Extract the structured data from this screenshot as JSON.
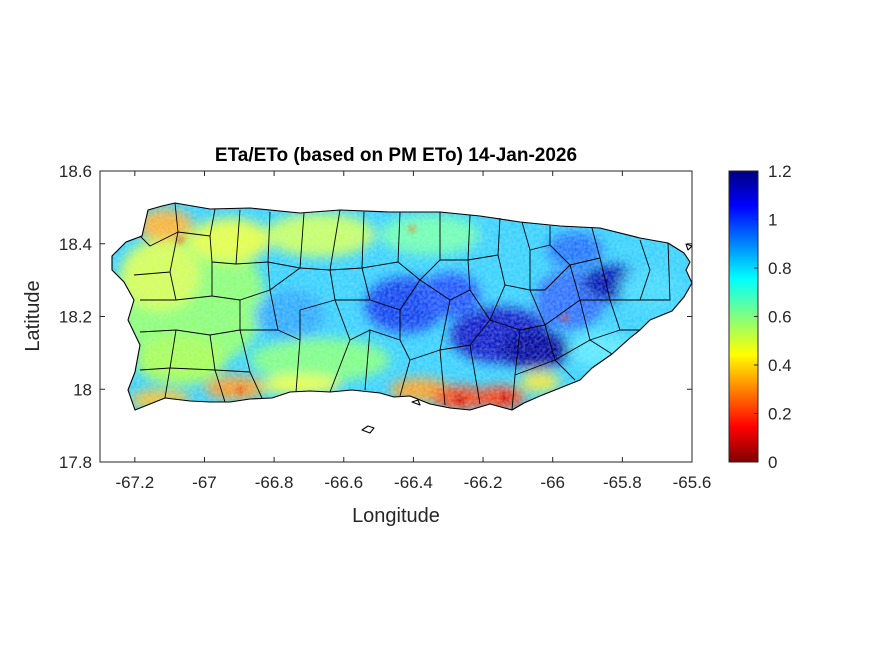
{
  "title": "ETa/ETo (based on PM ETo) 14-Jan-2026",
  "colormap": "jet",
  "colors": {
    "axis": "#262626",
    "outline": "#000000",
    "background": "#ffffff"
  },
  "chart_data": {
    "type": "heatmap",
    "title": "ETa/ETo (based on PM ETo) 14-Jan-2026",
    "xlabel": "Longitude",
    "ylabel": "Latitude",
    "xlim": [
      -67.3,
      -65.6
    ],
    "ylim": [
      17.8,
      18.6
    ],
    "x_ticks": [
      "-67.2",
      "-67",
      "-66.8",
      "-66.6",
      "-66.4",
      "-66.2",
      "-66",
      "-65.8",
      "-65.6"
    ],
    "y_ticks": [
      "18.6",
      "18.4",
      "18.2",
      "18",
      "17.8"
    ],
    "grid": false,
    "colorbar": {
      "range": [
        0,
        1.2
      ],
      "ticks": [
        "1.2",
        "1",
        "0.8",
        "0.6",
        "0.4",
        "0.2",
        "0"
      ],
      "location": "right"
    },
    "value_regions": [
      {
        "region": "northwest coast (Aguadilla–Isabela)",
        "approx_value": 0.45
      },
      {
        "region": "west interior",
        "approx_value": 0.6
      },
      {
        "region": "central mountains (Utuado–Orocovis–Barranquitas)",
        "approx_value": 0.95
      },
      {
        "region": "east-central (Cayey–Caguas–San Lorenzo)",
        "approx_value": 1.05
      },
      {
        "region": "northeast (El Yunque)",
        "approx_value": 1.1
      },
      {
        "region": "southwest coast (Cabo Rojo–Lajas)",
        "approx_value": 0.3
      },
      {
        "region": "south coast (Ponce–Santa Isabel–Salinas)",
        "approx_value": 0.2
      },
      {
        "region": "east coast (Humacao–Naguabo)",
        "approx_value": 0.75
      }
    ]
  }
}
